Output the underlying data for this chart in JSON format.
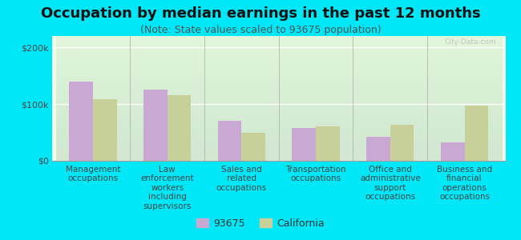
{
  "title": "Occupation by median earnings in the past 12 months",
  "subtitle": "(Note: State values scaled to 93675 population)",
  "categories": [
    "Management\noccupations",
    "Law\nenforcement\nworkers\nincluding\nsupervisors",
    "Sales and\nrelated\noccupations",
    "Transportation\noccupations",
    "Office and\nadministrative\nsupport\noccupations",
    "Business and\nfinancial\noperations\noccupations"
  ],
  "values_93675": [
    140000,
    125000,
    70000,
    58000,
    42000,
    32000
  ],
  "values_california": [
    108000,
    115000,
    50000,
    60000,
    63000,
    98000
  ],
  "color_93675": "#c9a8d4",
  "color_california": "#c8d09a",
  "ylim": [
    0,
    220000
  ],
  "yticks": [
    0,
    100000,
    200000
  ],
  "ytick_labels": [
    "$0",
    "$100k",
    "$200k"
  ],
  "legend_93675": "93675",
  "legend_california": "California",
  "background_color": "#00e8f8",
  "plot_bg_color": "#f0fce8",
  "watermark": "City-Data.com",
  "bar_width": 0.32,
  "title_fontsize": 13,
  "subtitle_fontsize": 9,
  "tick_fontsize": 8,
  "xlabel_fontsize": 7.5,
  "legend_fontsize": 9
}
